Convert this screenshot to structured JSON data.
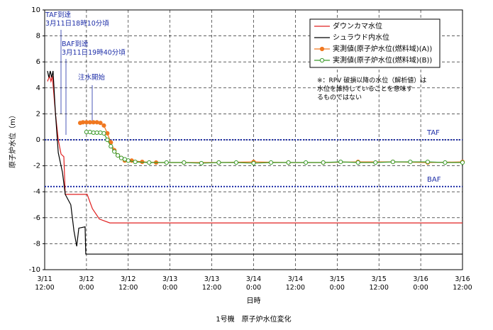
{
  "chart_data": {
    "type": "line",
    "title": "1号機　原子炉水位変化",
    "x_label": "日時",
    "y_label": "原子炉水位（m）",
    "xlim": [
      0,
      120
    ],
    "ylim": [
      -10,
      10
    ],
    "grid": true,
    "legend": "upper right",
    "xticks": [
      {
        "value": 0,
        "label": "3/11\n12:00"
      },
      {
        "value": 12,
        "label": "3/12\n0:00"
      },
      {
        "value": 24,
        "label": "3/12\n12:00"
      },
      {
        "value": 36,
        "label": "3/13\n0:00"
      },
      {
        "value": 48,
        "label": "3/13\n12:00"
      },
      {
        "value": 60,
        "label": "3/14\n0:00"
      },
      {
        "value": 72,
        "label": "3/14\n12:00"
      },
      {
        "value": 84,
        "label": "3/15\n0:00"
      },
      {
        "value": 96,
        "label": "3/15\n12:00"
      },
      {
        "value": 108,
        "label": "3/16\n0:00"
      },
      {
        "value": 120,
        "label": "3/16\n12:00"
      }
    ],
    "yticks": [
      -10,
      -8,
      -6,
      -4,
      -2,
      0,
      2,
      4,
      6,
      8,
      10
    ],
    "reference_lines": [
      {
        "value": 0,
        "label": "TAF",
        "color": "#1f2fa8"
      },
      {
        "value": -3.6,
        "label": "BAF",
        "color": "#1f2fa8"
      }
    ],
    "annotations": [
      "TAF到達\n3月11日18時10分頃",
      "BAF到達\n3月11日19時40分頃",
      "注水開始",
      "※：RPV 破損以降の水位（解析値）は\n水位を維持していることを意味す\nるものではない"
    ],
    "series": [
      {
        "name": "ダウンカマ水位",
        "color": "#e02020",
        "marker": false,
        "x": [
          0.8,
          1.4,
          1.8,
          2.2,
          3.1,
          3.9,
          4.7,
          5.5,
          5.9,
          12.2,
          13.7,
          15.7,
          18.7,
          120
        ],
        "values": [
          4.5,
          4.9,
          4.5,
          4.9,
          2,
          0,
          -1.1,
          -1.3,
          -4.2,
          -4.2,
          -5.3,
          -6.1,
          -6.4,
          -6.4
        ]
      },
      {
        "name": "シュラウド内水位",
        "color": "#000000",
        "marker": false,
        "x": [
          0.8,
          1.2,
          1.6,
          2,
          2.4,
          3.1,
          3.9,
          5.1,
          5.9,
          7.5,
          8.4,
          9.2,
          9.8,
          11.6,
          11.8,
          120
        ],
        "values": [
          5.3,
          4.8,
          5.3,
          4.8,
          5.3,
          2,
          -1,
          -2.5,
          -4.2,
          -5,
          -7,
          -8.2,
          -6.8,
          -6.7,
          -8.8,
          -8.8
        ]
      },
      {
        "name": "実測値(原子炉水位(燃料域)(A))",
        "color": "#f07820",
        "marker": true,
        "marker_fill": "#f07820",
        "x": [
          10.2,
          11,
          12,
          13,
          14,
          15,
          16,
          17,
          18,
          19,
          20,
          21,
          22,
          23,
          25,
          28,
          32,
          40,
          50,
          60,
          70,
          80,
          90,
          100,
          110,
          120
        ],
        "values": [
          1.3,
          1.35,
          1.35,
          1.35,
          1.35,
          1.35,
          1.3,
          1.1,
          0.5,
          -0.2,
          -0.8,
          -1.2,
          -1.4,
          -1.6,
          -1.6,
          -1.7,
          -1.75,
          -1.75,
          -1.75,
          -1.7,
          -1.75,
          -1.75,
          -1.7,
          -1.7,
          -1.75,
          -1.7
        ]
      },
      {
        "name": "実測値(原子炉水位(燃料域)(B))",
        "color": "#3a9a2a",
        "marker": true,
        "marker_fill": "#ffffff",
        "x": [
          12,
          13,
          14,
          15,
          16,
          17,
          18,
          19,
          20,
          21,
          22,
          23,
          24,
          26,
          30,
          35,
          40,
          45,
          50,
          55,
          60,
          65,
          70,
          75,
          80,
          85,
          90,
          95,
          100,
          105,
          110,
          115,
          120
        ],
        "values": [
          0.6,
          0.6,
          0.55,
          0.55,
          0.55,
          0.5,
          0,
          -0.5,
          -0.9,
          -1.2,
          -1.4,
          -1.5,
          -1.6,
          -1.7,
          -1.75,
          -1.75,
          -1.75,
          -1.8,
          -1.75,
          -1.75,
          -1.8,
          -1.75,
          -1.75,
          -1.75,
          -1.75,
          -1.7,
          -1.75,
          -1.75,
          -1.7,
          -1.7,
          -1.7,
          -1.75,
          -1.75
        ]
      }
    ]
  }
}
